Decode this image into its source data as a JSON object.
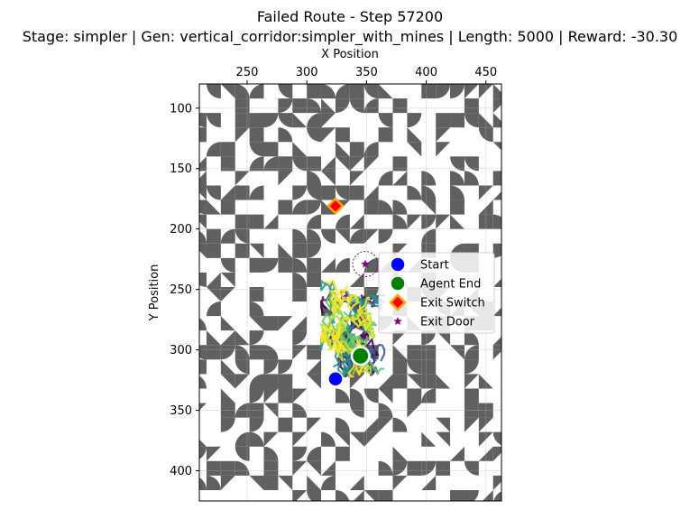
{
  "chart_data": {
    "type": "scatter",
    "title": "Failed Route - Step 57200",
    "subtitle": "Stage: simpler | Gen: vertical_corridor:simpler_with_mines | Length: 5000 | Reward: -30.30",
    "xlabel": "X Position",
    "ylabel": "Y Position",
    "xlim": [
      210,
      463
    ],
    "ylim": [
      425,
      80
    ],
    "x_axis_position": "top",
    "y_axis_inverted": true,
    "grid": true,
    "xticks": [
      250,
      300,
      350,
      400,
      450
    ],
    "yticks": [
      100,
      150,
      200,
      250,
      300,
      350,
      400
    ],
    "legend_position": "center-right",
    "series": [
      {
        "name": "Start",
        "marker": "circle",
        "color": "#0000ff",
        "points": [
          {
            "x": 324,
            "y": 324
          }
        ]
      },
      {
        "name": "Agent End",
        "marker": "circle",
        "color": "#008000",
        "points": [
          {
            "x": 345,
            "y": 305
          }
        ]
      },
      {
        "name": "Exit Switch",
        "marker": "diamond",
        "color": "#ff0000",
        "edge_color": "#ffa500",
        "points": [
          {
            "x": 324,
            "y": 181
          }
        ]
      },
      {
        "name": "Exit Door",
        "marker": "star",
        "color": "#800080",
        "points": [
          {
            "x": 349,
            "y": 229
          }
        ]
      }
    ],
    "trajectory": {
      "colormap": "viridis",
      "x_range": [
        312,
        365
      ],
      "y_range": [
        243,
        322
      ]
    },
    "tile_colors": {
      "wall": "#606060",
      "empty": "#ffffff"
    }
  }
}
